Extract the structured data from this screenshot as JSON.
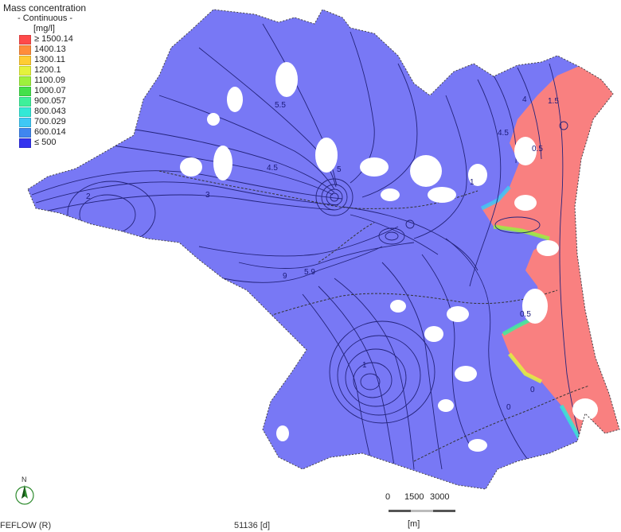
{
  "legend": {
    "title": "Mass concentration",
    "subtitle": "- Continuous -",
    "unit": "[mg/l]",
    "items": [
      {
        "label": "≥ 1500.14",
        "color": "#ff4a4a"
      },
      {
        "label": "1400.13",
        "color": "#ff8c3a"
      },
      {
        "label": "1300.11",
        "color": "#ffcc33"
      },
      {
        "label": "1200.1",
        "color": "#e4f23c"
      },
      {
        "label": "1100.09",
        "color": "#9ef03c"
      },
      {
        "label": "1000.07",
        "color": "#44e04a"
      },
      {
        "label": "900.057",
        "color": "#3ef09a"
      },
      {
        "label": "800.043",
        "color": "#33e8d6"
      },
      {
        "label": "700.029",
        "color": "#3fc8f5"
      },
      {
        "label": "600.014",
        "color": "#3f86ef"
      },
      {
        "label": "≤ 500",
        "color": "#3333ee"
      }
    ]
  },
  "colors": {
    "domain": "#7878f5",
    "high": "#f98080",
    "contour": "#23237a",
    "boundary": "#444444"
  },
  "contour_labels": [
    "0.5",
    "1",
    "2",
    "3",
    "4.5",
    "5",
    "5.5",
    "9",
    "5.9",
    "1.5",
    "4",
    "0"
  ],
  "north_label": "N",
  "scale": {
    "ticks": [
      "0",
      "1500",
      "3000"
    ],
    "unit": "[m]"
  },
  "footer": {
    "software": "FEFLOW (R)",
    "time": "51136 [d]"
  }
}
